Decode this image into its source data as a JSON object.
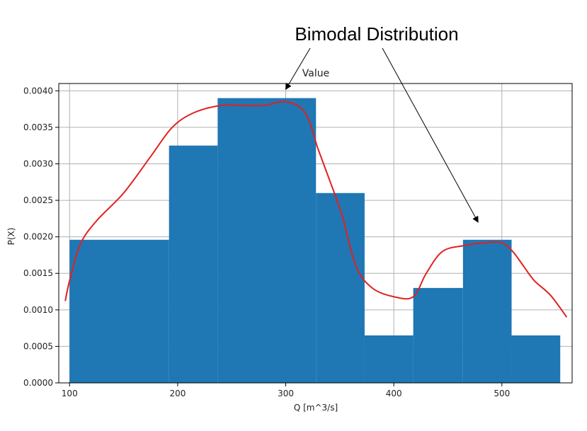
{
  "chart_data": {
    "type": "bar",
    "title": "Value",
    "xlabel": "Q [m^3/s]",
    "ylabel": "P(X)",
    "xlim": [
      90,
      565
    ],
    "ylim": [
      0,
      0.0041
    ],
    "grid": true,
    "xticks": [
      100,
      200,
      300,
      400,
      500
    ],
    "yticks": [
      0.0,
      0.0005,
      0.001,
      0.0015,
      0.002,
      0.0025,
      0.003,
      0.0035,
      0.004
    ],
    "ytick_labels": [
      "0.0000",
      "0.0005",
      "0.0010",
      "0.0015",
      "0.0020",
      "0.0025",
      "0.0030",
      "0.0035",
      "0.0040"
    ],
    "bin_edges": [
      100,
      192,
      237,
      328,
      373,
      418,
      464,
      509,
      554
    ],
    "bar_values": [
      0.00196,
      0.00325,
      0.0039,
      0.0026,
      0.00065,
      0.0013,
      0.00196,
      0.00065
    ],
    "bar_color": "#1f77b4",
    "kde_color": "#e32020",
    "kde_x": [
      96,
      100,
      110,
      125,
      150,
      175,
      195,
      215,
      240,
      260,
      280,
      300,
      318,
      330,
      340,
      352,
      365,
      380,
      400,
      418,
      430,
      445,
      465,
      485,
      500,
      510,
      520,
      530,
      545,
      560
    ],
    "kde_y": [
      0.00112,
      0.0014,
      0.0019,
      0.00222,
      0.0026,
      0.0031,
      0.0035,
      0.0037,
      0.0038,
      0.0038,
      0.0038,
      0.00385,
      0.0037,
      0.0032,
      0.0028,
      0.0023,
      0.0016,
      0.0013,
      0.00118,
      0.00118,
      0.0015,
      0.0018,
      0.00188,
      0.00192,
      0.00192,
      0.0018,
      0.0016,
      0.0014,
      0.0012,
      0.0009
    ],
    "annotation": {
      "text": "Bimodal Distribution",
      "arrow_targets": [
        {
          "x": 300,
          "y": 0.00402
        },
        {
          "x": 478,
          "y": 0.0022
        }
      ]
    }
  }
}
